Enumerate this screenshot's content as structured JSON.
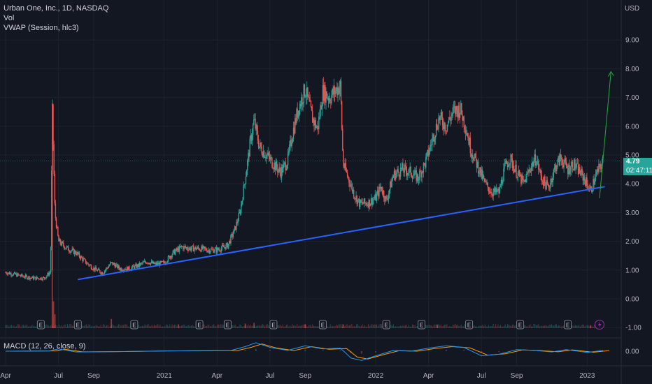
{
  "legend": {
    "symbol_line": "Urban One, Inc., 1D, NASDAQ",
    "vol": "Vol",
    "vwap": "VWAP (Session, hlc3)"
  },
  "macd_label": "MACD (12, 26, close, 9)",
  "currency": "USD",
  "last_price": "4.79",
  "countdown": "02:47:11",
  "colors": {
    "background": "#131722",
    "up": "#26a69a",
    "down": "#ef5350",
    "trendline": "#2962ff",
    "arrow": "#22ab3a",
    "macd": "#2196f3",
    "signal": "#ff9800",
    "earnings_marker": "#787b86",
    "dividend_marker": "#9c27b0"
  },
  "chart_data": {
    "type": "candlestick",
    "title": "Urban One, Inc., 1D, NASDAQ",
    "ylim": [
      -1.0,
      10.0
    ],
    "y_ticks": [
      9.0,
      8.0,
      7.0,
      6.0,
      5.0,
      4.0,
      3.0,
      2.0,
      1.0,
      0.0,
      -1.0
    ],
    "x_tick_labels": [
      {
        "label": "Apr",
        "t": 0.0
      },
      {
        "label": "Jul",
        "t": 3.0
      },
      {
        "label": "Sep",
        "t": 5.0
      },
      {
        "label": "2021",
        "t": 9.0
      },
      {
        "label": "Apr",
        "t": 12.0
      },
      {
        "label": "Jul",
        "t": 15.0
      },
      {
        "label": "Sep",
        "t": 17.0
      },
      {
        "label": "2022",
        "t": 21.0
      },
      {
        "label": "Apr",
        "t": 24.0
      },
      {
        "label": "Jul",
        "t": 27.0
      },
      {
        "label": "Sep",
        "t": 29.0
      },
      {
        "label": "2023",
        "t": 33.0
      }
    ],
    "x_range": [
      0.0,
      34.5
    ],
    "price_path": [
      {
        "t": 0.0,
        "p": 0.92
      },
      {
        "t": 0.5,
        "p": 0.85
      },
      {
        "t": 1.0,
        "p": 0.78
      },
      {
        "t": 1.6,
        "p": 0.72
      },
      {
        "t": 2.2,
        "p": 0.72
      },
      {
        "t": 2.55,
        "p": 0.95
      },
      {
        "t": 2.65,
        "p": 6.6
      },
      {
        "t": 2.8,
        "p": 3.0
      },
      {
        "t": 3.0,
        "p": 2.0
      },
      {
        "t": 3.5,
        "p": 1.75
      },
      {
        "t": 4.0,
        "p": 1.6
      },
      {
        "t": 4.5,
        "p": 1.3
      },
      {
        "t": 5.0,
        "p": 1.05
      },
      {
        "t": 5.5,
        "p": 0.9
      },
      {
        "t": 6.0,
        "p": 1.25
      },
      {
        "t": 6.5,
        "p": 1.05
      },
      {
        "t": 7.0,
        "p": 1.05
      },
      {
        "t": 7.5,
        "p": 1.15
      },
      {
        "t": 8.0,
        "p": 1.3
      },
      {
        "t": 8.5,
        "p": 1.2
      },
      {
        "t": 9.0,
        "p": 1.25
      },
      {
        "t": 9.5,
        "p": 1.6
      },
      {
        "t": 10.0,
        "p": 1.8
      },
      {
        "t": 10.5,
        "p": 1.75
      },
      {
        "t": 11.0,
        "p": 1.75
      },
      {
        "t": 11.5,
        "p": 1.7
      },
      {
        "t": 12.0,
        "p": 1.7
      },
      {
        "t": 12.6,
        "p": 1.85
      },
      {
        "t": 13.0,
        "p": 2.4
      },
      {
        "t": 13.3,
        "p": 3.0
      },
      {
        "t": 13.6,
        "p": 4.2
      },
      {
        "t": 13.9,
        "p": 5.5
      },
      {
        "t": 14.1,
        "p": 6.2
      },
      {
        "t": 14.4,
        "p": 5.3
      },
      {
        "t": 14.8,
        "p": 5.0
      },
      {
        "t": 15.2,
        "p": 4.7
      },
      {
        "t": 15.6,
        "p": 4.4
      },
      {
        "t": 16.0,
        "p": 4.8
      },
      {
        "t": 16.3,
        "p": 5.8
      },
      {
        "t": 16.6,
        "p": 6.6
      },
      {
        "t": 17.0,
        "p": 7.3
      },
      {
        "t": 17.4,
        "p": 6.3
      },
      {
        "t": 17.7,
        "p": 5.9
      },
      {
        "t": 18.0,
        "p": 7.2
      },
      {
        "t": 18.4,
        "p": 7.0
      },
      {
        "t": 18.8,
        "p": 7.3
      },
      {
        "t": 19.0,
        "p": 7.4
      },
      {
        "t": 19.15,
        "p": 4.7
      },
      {
        "t": 19.5,
        "p": 4.1
      },
      {
        "t": 19.8,
        "p": 3.6
      },
      {
        "t": 20.1,
        "p": 3.3
      },
      {
        "t": 20.6,
        "p": 3.35
      },
      {
        "t": 21.0,
        "p": 3.5
      },
      {
        "t": 21.3,
        "p": 3.9
      },
      {
        "t": 21.6,
        "p": 3.4
      },
      {
        "t": 22.0,
        "p": 4.3
      },
      {
        "t": 22.5,
        "p": 4.5
      },
      {
        "t": 23.0,
        "p": 4.4
      },
      {
        "t": 23.4,
        "p": 4.2
      },
      {
        "t": 23.8,
        "p": 4.7
      },
      {
        "t": 24.2,
        "p": 5.5
      },
      {
        "t": 24.6,
        "p": 6.3
      },
      {
        "t": 25.0,
        "p": 6.0
      },
      {
        "t": 25.4,
        "p": 6.5
      },
      {
        "t": 25.8,
        "p": 6.6
      },
      {
        "t": 26.1,
        "p": 6.0
      },
      {
        "t": 26.4,
        "p": 5.2
      },
      {
        "t": 26.8,
        "p": 4.6
      },
      {
        "t": 27.2,
        "p": 4.0
      },
      {
        "t": 27.6,
        "p": 3.7
      },
      {
        "t": 28.0,
        "p": 3.7
      },
      {
        "t": 28.3,
        "p": 4.5
      },
      {
        "t": 28.6,
        "p": 4.9
      },
      {
        "t": 29.0,
        "p": 4.4
      },
      {
        "t": 29.4,
        "p": 4.0
      },
      {
        "t": 29.8,
        "p": 4.6
      },
      {
        "t": 30.1,
        "p": 4.9
      },
      {
        "t": 30.4,
        "p": 4.2
      },
      {
        "t": 30.8,
        "p": 3.85
      },
      {
        "t": 31.2,
        "p": 4.6
      },
      {
        "t": 31.5,
        "p": 4.9
      },
      {
        "t": 31.9,
        "p": 4.5
      },
      {
        "t": 32.2,
        "p": 4.7
      },
      {
        "t": 32.6,
        "p": 4.4
      },
      {
        "t": 32.9,
        "p": 4.1
      },
      {
        "t": 33.2,
        "p": 3.75
      },
      {
        "t": 33.5,
        "p": 4.3
      },
      {
        "t": 33.9,
        "p": 4.79
      }
    ],
    "volume_spikes": [
      {
        "t": 2.65,
        "v": 1.0
      },
      {
        "t": 2.72,
        "v": 0.35
      },
      {
        "t": 2.8,
        "v": 0.18
      },
      {
        "t": 6.0,
        "v": 0.12
      },
      {
        "t": 4.2,
        "v": 0.05
      },
      {
        "t": 7.4,
        "v": 0.06
      },
      {
        "t": 9.8,
        "v": 0.05
      },
      {
        "t": 13.6,
        "v": 0.06
      },
      {
        "t": 14.1,
        "v": 0.07
      },
      {
        "t": 17.0,
        "v": 0.05
      },
      {
        "t": 19.15,
        "v": 0.05
      },
      {
        "t": 24.5,
        "v": 0.04
      },
      {
        "t": 33.2,
        "v": 0.04
      }
    ],
    "trendline": {
      "t1": 4.1,
      "p1": 0.67,
      "t2": 34.0,
      "p2": 3.9
    },
    "projection_arrow": {
      "t1": 33.7,
      "p1": 3.5,
      "t2": 34.35,
      "p2": 7.9
    },
    "last_price": 4.79,
    "earnings_events": [
      2.0,
      4.1,
      7.3,
      11.0,
      12.6,
      15.2,
      18.0,
      21.6,
      23.6,
      26.3,
      29.2,
      31.9
    ],
    "dividend_event": 33.7,
    "macd_ylim": [
      -0.75,
      0.75
    ],
    "macd_ticks": [
      0.0
    ],
    "macd_path": [
      {
        "t": 0.0,
        "m": 0.0
      },
      {
        "t": 2.5,
        "m": 0.02
      },
      {
        "t": 3.0,
        "m": 0.15
      },
      {
        "t": 4.0,
        "m": -0.05
      },
      {
        "t": 6.0,
        "m": -0.03
      },
      {
        "t": 9.0,
        "m": 0.02
      },
      {
        "t": 11.0,
        "m": 0.03
      },
      {
        "t": 12.8,
        "m": 0.05
      },
      {
        "t": 13.6,
        "m": 0.3
      },
      {
        "t": 14.2,
        "m": 0.55
      },
      {
        "t": 15.0,
        "m": 0.25
      },
      {
        "t": 16.0,
        "m": 0.05
      },
      {
        "t": 17.0,
        "m": 0.35
      },
      {
        "t": 18.0,
        "m": 0.15
      },
      {
        "t": 19.0,
        "m": 0.2
      },
      {
        "t": 19.6,
        "m": -0.45
      },
      {
        "t": 20.2,
        "m": -0.6
      },
      {
        "t": 21.0,
        "m": -0.3
      },
      {
        "t": 22.0,
        "m": 0.05
      },
      {
        "t": 23.0,
        "m": 0.0
      },
      {
        "t": 24.0,
        "m": 0.2
      },
      {
        "t": 25.0,
        "m": 0.35
      },
      {
        "t": 26.0,
        "m": 0.25
      },
      {
        "t": 27.0,
        "m": -0.3
      },
      {
        "t": 28.0,
        "m": -0.2
      },
      {
        "t": 29.0,
        "m": 0.1
      },
      {
        "t": 30.0,
        "m": 0.05
      },
      {
        "t": 31.0,
        "m": -0.05
      },
      {
        "t": 31.8,
        "m": 0.1
      },
      {
        "t": 33.0,
        "m": -0.08
      },
      {
        "t": 33.9,
        "m": 0.05
      }
    ]
  }
}
